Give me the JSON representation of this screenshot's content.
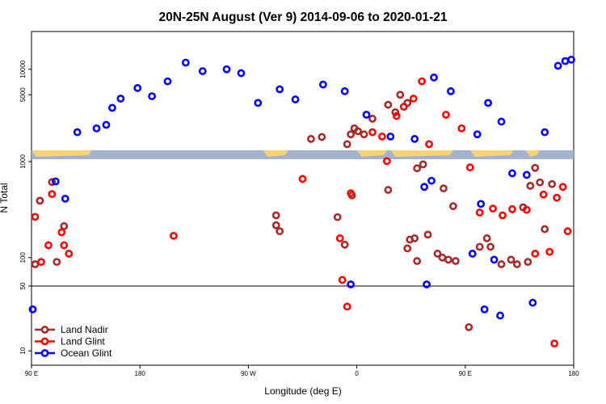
{
  "chart_data": {
    "type": "scatter",
    "title": "20N-25N August (Ver 9)   2014-09-06 to 2020-01-21",
    "xlabel": "Longitude (deg E)",
    "ylabel": "N Total",
    "x_ticks": [
      {
        "value": 90,
        "label": "90 E"
      },
      {
        "value": 180,
        "label": "180"
      },
      {
        "value": 270,
        "label": "90 W"
      },
      {
        "value": 360,
        "label": "0"
      },
      {
        "value": 450,
        "label": "90 E"
      },
      {
        "value": 540,
        "label": "180"
      }
    ],
    "y_ticks": [
      {
        "value": 10,
        "label": "10"
      },
      {
        "value": 50,
        "label": "50"
      },
      {
        "value": 100,
        "label": "100"
      },
      {
        "value": 1000,
        "label": "1000"
      },
      {
        "value": 5000,
        "label": "5000"
      },
      {
        "value": 10000,
        "label": "10000"
      }
    ],
    "xlim": [
      90,
      540
    ],
    "y_scale": "log",
    "panels": [
      {
        "name": "lower",
        "ylim": [
          7,
          50
        ]
      },
      {
        "name": "middle",
        "ylim": [
          50,
          1100
        ]
      },
      {
        "name": "upper",
        "ylim": [
          1100,
          28000
        ]
      }
    ],
    "legend_position": "bottom-left",
    "colors": {
      "land_nadir": "#a52a2a",
      "land_glint": "#ff0000",
      "ocean_glint": "#0000ff",
      "map_ocean": "#a3b3cf",
      "map_land": "#f7d376"
    },
    "series": [
      {
        "name": "Land Nadir",
        "color": "#a52a2a",
        "points": [
          [
            93,
            85
          ],
          [
            97,
            400
          ],
          [
            107,
            630
          ],
          [
            111,
            90
          ],
          [
            117,
            215
          ],
          [
            293,
            220
          ],
          [
            293,
            280
          ],
          [
            296,
            190
          ],
          [
            344,
            268
          ],
          [
            350,
            137
          ],
          [
            402,
            125
          ],
          [
            404,
            155
          ],
          [
            408,
            160
          ],
          [
            410,
            92
          ],
          [
            419,
            175
          ],
          [
            432,
            540
          ],
          [
            440,
            350
          ],
          [
            468,
            160
          ],
          [
            498,
            340
          ],
          [
            504,
            575
          ],
          [
            516,
            200
          ],
          [
            522,
            600
          ],
          [
            508,
            890
          ],
          [
            512,
            625
          ],
          [
            356,
            455
          ],
          [
            322,
            1500
          ],
          [
            331,
            1580
          ],
          [
            352,
            1300
          ],
          [
            355,
            1700
          ],
          [
            358,
            2000
          ],
          [
            361,
            1850
          ],
          [
            366,
            1700
          ],
          [
            373,
            2600
          ],
          [
            386,
            3800
          ],
          [
            386,
            520
          ],
          [
            396,
            5000
          ],
          [
            392,
            3100
          ],
          [
            402,
            4000
          ],
          [
            410,
            880
          ],
          [
            415,
            970
          ],
          [
            427,
            110
          ],
          [
            431,
            100
          ],
          [
            436,
            95
          ],
          [
            442,
            92
          ],
          [
            453,
            18
          ],
          [
            462,
            130
          ],
          [
            471,
            130
          ],
          [
            480,
            85
          ],
          [
            488,
            95
          ],
          [
            493,
            85
          ],
          [
            502,
            90
          ]
        ]
      },
      {
        "name": "Land Glint",
        "color": "#ff0000",
        "points": [
          [
            93,
            270
          ],
          [
            98,
            90
          ],
          [
            104,
            135
          ],
          [
            107,
            470
          ],
          [
            115,
            185
          ],
          [
            117,
            135
          ],
          [
            121,
            110
          ],
          [
            208,
            170
          ],
          [
            315,
            680
          ],
          [
            346,
            160
          ],
          [
            348,
            58
          ],
          [
            352,
            30
          ],
          [
            355,
            480
          ],
          [
            373,
            1800
          ],
          [
            381,
            1600
          ],
          [
            385,
            1050
          ],
          [
            393,
            2800
          ],
          [
            399,
            3600
          ],
          [
            407,
            4500
          ],
          [
            414,
            7200
          ],
          [
            420,
            1300
          ],
          [
            434,
            2900
          ],
          [
            447,
            2000
          ],
          [
            454,
            900
          ],
          [
            462,
            300
          ],
          [
            473,
            330
          ],
          [
            481,
            280
          ],
          [
            489,
            325
          ],
          [
            501,
            320
          ],
          [
            508,
            110
          ],
          [
            524,
            12
          ],
          [
            515,
            465
          ],
          [
            520,
            115
          ],
          [
            526,
            430
          ],
          [
            531,
            560
          ],
          [
            535,
            190
          ]
        ]
      },
      {
        "name": "Ocean Glint",
        "color": "#0000ff",
        "points": [
          [
            91,
            28
          ],
          [
            110,
            640
          ],
          [
            118,
            420
          ],
          [
            128,
            1800
          ],
          [
            144,
            2000
          ],
          [
            152,
            2200
          ],
          [
            157,
            3500
          ],
          [
            164,
            4500
          ],
          [
            178,
            6000
          ],
          [
            190,
            4800
          ],
          [
            203,
            7200
          ],
          [
            218,
            12000
          ],
          [
            232,
            9500
          ],
          [
            252,
            10000
          ],
          [
            264,
            9000
          ],
          [
            278,
            4000
          ],
          [
            296,
            5800
          ],
          [
            309,
            4400
          ],
          [
            332,
            6600
          ],
          [
            350,
            5500
          ],
          [
            368,
            2900
          ],
          [
            388,
            1600
          ],
          [
            408,
            1500
          ],
          [
            424,
            8000
          ],
          [
            438,
            5500
          ],
          [
            460,
            1700
          ],
          [
            469,
            4000
          ],
          [
            480,
            2400
          ],
          [
            489,
            780
          ],
          [
            501,
            750
          ],
          [
            506,
            33
          ],
          [
            516,
            1800
          ],
          [
            527,
            11000
          ],
          [
            533,
            12500
          ],
          [
            538,
            13000
          ],
          [
            456,
            110
          ],
          [
            416,
            560
          ],
          [
            463,
            370
          ],
          [
            422,
            650
          ],
          [
            474,
            95
          ],
          [
            479,
            24
          ],
          [
            418,
            52
          ],
          [
            466,
            28
          ],
          [
            355,
            52
          ]
        ]
      }
    ]
  }
}
